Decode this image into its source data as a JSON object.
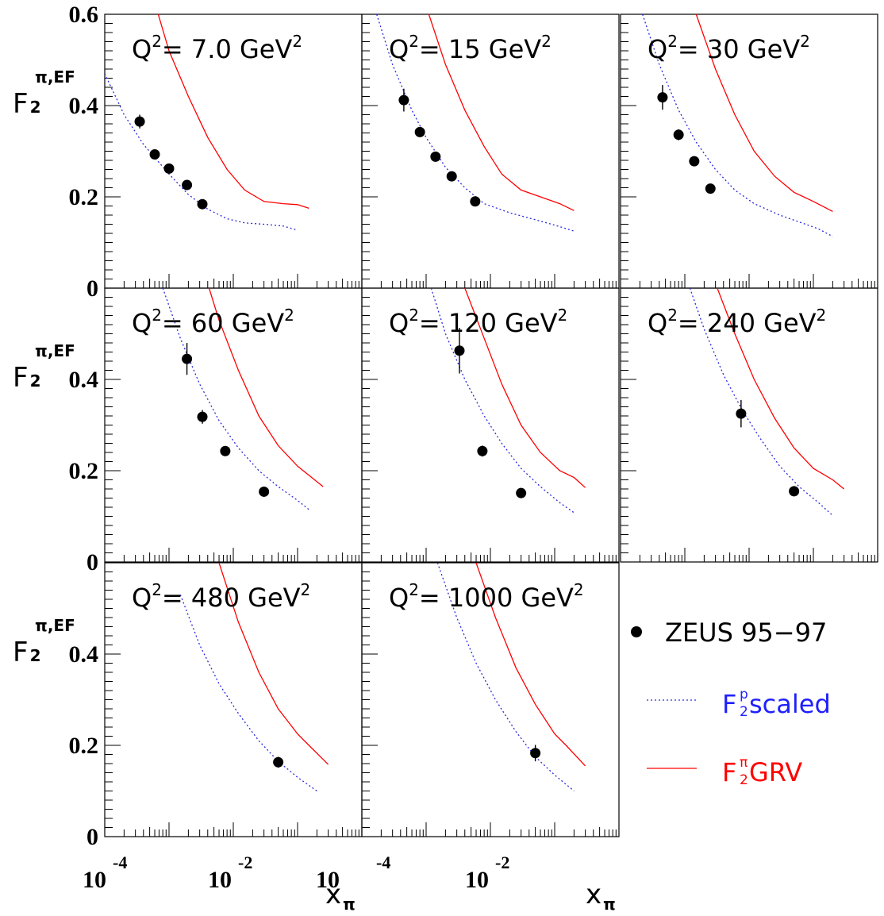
{
  "chart_data": {
    "type": "scatter",
    "x_scale": "log",
    "xlim": [
      0.0001,
      1
    ],
    "ylim": [
      0,
      0.6
    ],
    "x_tick_labels": [
      {
        "base": "10",
        "exp": "-4"
      },
      {
        "base": "10",
        "exp": "-2"
      },
      {
        "base": "10",
        "exp": ""
      }
    ],
    "x_tick_labels_col2": [
      {
        "base": "",
        "exp": "-4"
      },
      {
        "base": "10",
        "exp": "-2"
      }
    ],
    "y_tick_labels_top": [
      "0.6",
      "0.4",
      "0.2",
      "0"
    ],
    "y_tick_labels": [
      "0.4",
      "0.2",
      "0"
    ],
    "ylabel": {
      "main": "F",
      "sub": "2",
      "sup": "π,EF"
    },
    "xlabel": {
      "main": "x",
      "sub": "π"
    },
    "legend": {
      "placement": "bottom-right",
      "data_label": "ZEUS 95−97",
      "scaled_label": {
        "main": "F",
        "sub": "2",
        "sup": "p",
        "rest": " scaled",
        "color": "#2020ff"
      },
      "grv_label": {
        "main": "F",
        "sub": "2",
        "sup": "π",
        "rest": " GRV",
        "color": "#ff0000"
      }
    },
    "colors": {
      "data": "#000000",
      "scaled": "#2a2adf",
      "grv": "#ff0000"
    },
    "panels": [
      {
        "q2_prefix": "Q",
        "q2_sup": "2",
        "q2_text": "= 7.0 GeV",
        "q2_unit_sup": "2",
        "data": [
          {
            "x": 0.00035,
            "y": 0.365,
            "err": 0.015
          },
          {
            "x": 0.0006,
            "y": 0.293,
            "err": 0.008
          },
          {
            "x": 0.001,
            "y": 0.262,
            "err": 0.008
          },
          {
            "x": 0.0019,
            "y": 0.226,
            "err": 0.007
          },
          {
            "x": 0.0033,
            "y": 0.184,
            "err": 0.007
          }
        ],
        "scaled": [
          [
            0.0001,
            0.47
          ],
          [
            0.0002,
            0.38
          ],
          [
            0.0004,
            0.315
          ],
          [
            0.001,
            0.25
          ],
          [
            0.002,
            0.205
          ],
          [
            0.004,
            0.173
          ],
          [
            0.008,
            0.152
          ],
          [
            0.015,
            0.143
          ],
          [
            0.03,
            0.14
          ],
          [
            0.06,
            0.136
          ],
          [
            0.1,
            0.127
          ]
        ],
        "grv": [
          [
            0.00068,
            0.6
          ],
          [
            0.001,
            0.52
          ],
          [
            0.002,
            0.42
          ],
          [
            0.004,
            0.33
          ],
          [
            0.008,
            0.26
          ],
          [
            0.015,
            0.215
          ],
          [
            0.03,
            0.19
          ],
          [
            0.06,
            0.185
          ],
          [
            0.1,
            0.183
          ],
          [
            0.15,
            0.175
          ]
        ]
      },
      {
        "q2_prefix": "Q",
        "q2_sup": "2",
        "q2_text": "= 15 GeV",
        "q2_unit_sup": "2",
        "data": [
          {
            "x": 0.00045,
            "y": 0.412,
            "err": 0.025
          },
          {
            "x": 0.0008,
            "y": 0.342,
            "err": 0.01
          },
          {
            "x": 0.0014,
            "y": 0.288,
            "err": 0.009
          },
          {
            "x": 0.0025,
            "y": 0.245,
            "err": 0.009
          },
          {
            "x": 0.0058,
            "y": 0.19,
            "err": 0.01
          }
        ],
        "scaled": [
          [
            0.00017,
            0.6
          ],
          [
            0.0003,
            0.49
          ],
          [
            0.0006,
            0.39
          ],
          [
            0.001,
            0.33
          ],
          [
            0.002,
            0.265
          ],
          [
            0.004,
            0.22
          ],
          [
            0.008,
            0.185
          ],
          [
            0.02,
            0.165
          ],
          [
            0.05,
            0.15
          ],
          [
            0.1,
            0.138
          ],
          [
            0.2,
            0.125
          ]
        ],
        "grv": [
          [
            0.0011,
            0.6
          ],
          [
            0.002,
            0.49
          ],
          [
            0.004,
            0.39
          ],
          [
            0.008,
            0.31
          ],
          [
            0.015,
            0.25
          ],
          [
            0.03,
            0.215
          ],
          [
            0.06,
            0.2
          ],
          [
            0.12,
            0.185
          ],
          [
            0.2,
            0.17
          ]
        ]
      },
      {
        "q2_prefix": "Q",
        "q2_sup": "2",
        "q2_text": "= 30 GeV",
        "q2_unit_sup": "2",
        "data": [
          {
            "x": 0.00045,
            "y": 0.418,
            "err": 0.027
          },
          {
            "x": 0.0008,
            "y": 0.336,
            "err": 0.012
          },
          {
            "x": 0.0014,
            "y": 0.278,
            "err": 0.01
          },
          {
            "x": 0.0025,
            "y": 0.218,
            "err": 0.009
          }
        ],
        "scaled": [
          [
            0.00022,
            0.6
          ],
          [
            0.0004,
            0.49
          ],
          [
            0.0008,
            0.39
          ],
          [
            0.0015,
            0.32
          ],
          [
            0.003,
            0.26
          ],
          [
            0.006,
            0.215
          ],
          [
            0.012,
            0.185
          ],
          [
            0.03,
            0.16
          ],
          [
            0.06,
            0.145
          ],
          [
            0.12,
            0.13
          ],
          [
            0.2,
            0.113
          ]
        ],
        "grv": [
          [
            0.0015,
            0.6
          ],
          [
            0.003,
            0.48
          ],
          [
            0.006,
            0.38
          ],
          [
            0.012,
            0.3
          ],
          [
            0.025,
            0.245
          ],
          [
            0.05,
            0.21
          ],
          [
            0.1,
            0.19
          ],
          [
            0.2,
            0.168
          ]
        ]
      },
      {
        "q2_prefix": "Q",
        "q2_sup": "2",
        "q2_text": "= 60 GeV",
        "q2_unit_sup": "2",
        "data": [
          {
            "x": 0.0019,
            "y": 0.445,
            "err": 0.035
          },
          {
            "x": 0.0033,
            "y": 0.318,
            "err": 0.015
          },
          {
            "x": 0.0075,
            "y": 0.243,
            "err": 0.01
          },
          {
            "x": 0.03,
            "y": 0.154,
            "err": 0.008
          }
        ],
        "scaled": [
          [
            0.0008,
            0.6
          ],
          [
            0.0015,
            0.49
          ],
          [
            0.003,
            0.39
          ],
          [
            0.006,
            0.31
          ],
          [
            0.012,
            0.25
          ],
          [
            0.025,
            0.2
          ],
          [
            0.05,
            0.165
          ],
          [
            0.1,
            0.135
          ],
          [
            0.15,
            0.115
          ]
        ],
        "grv": [
          [
            0.0042,
            0.6
          ],
          [
            0.006,
            0.53
          ],
          [
            0.012,
            0.42
          ],
          [
            0.025,
            0.32
          ],
          [
            0.05,
            0.255
          ],
          [
            0.1,
            0.21
          ],
          [
            0.15,
            0.19
          ],
          [
            0.25,
            0.165
          ]
        ]
      },
      {
        "q2_prefix": "Q",
        "q2_sup": "2",
        "q2_text": "= 120 GeV",
        "q2_unit_sup": "2",
        "data": [
          {
            "x": 0.0033,
            "y": 0.463,
            "err": 0.05
          },
          {
            "x": 0.0075,
            "y": 0.243,
            "err": 0.012
          },
          {
            "x": 0.03,
            "y": 0.151,
            "err": 0.008
          }
        ],
        "scaled": [
          [
            0.0012,
            0.6
          ],
          [
            0.002,
            0.5
          ],
          [
            0.004,
            0.4
          ],
          [
            0.008,
            0.32
          ],
          [
            0.015,
            0.26
          ],
          [
            0.03,
            0.205
          ],
          [
            0.06,
            0.165
          ],
          [
            0.12,
            0.13
          ],
          [
            0.2,
            0.108
          ]
        ],
        "grv": [
          [
            0.004,
            0.6
          ],
          [
            0.008,
            0.49
          ],
          [
            0.015,
            0.39
          ],
          [
            0.03,
            0.3
          ],
          [
            0.06,
            0.24
          ],
          [
            0.12,
            0.2
          ],
          [
            0.2,
            0.185
          ],
          [
            0.3,
            0.163
          ]
        ]
      },
      {
        "q2_prefix": "Q",
        "q2_sup": "2",
        "q2_text": "= 240 GeV",
        "q2_unit_sup": "2",
        "data": [
          {
            "x": 0.0075,
            "y": 0.325,
            "err": 0.03
          },
          {
            "x": 0.05,
            "y": 0.155,
            "err": 0.009
          }
        ],
        "scaled": [
          [
            0.0012,
            0.6
          ],
          [
            0.002,
            0.51
          ],
          [
            0.004,
            0.41
          ],
          [
            0.008,
            0.33
          ],
          [
            0.015,
            0.27
          ],
          [
            0.03,
            0.21
          ],
          [
            0.06,
            0.165
          ],
          [
            0.12,
            0.13
          ],
          [
            0.2,
            0.102
          ]
        ],
        "grv": [
          [
            0.0032,
            0.6
          ],
          [
            0.006,
            0.5
          ],
          [
            0.012,
            0.4
          ],
          [
            0.025,
            0.315
          ],
          [
            0.05,
            0.25
          ],
          [
            0.1,
            0.205
          ],
          [
            0.2,
            0.18
          ],
          [
            0.3,
            0.16
          ]
        ]
      },
      {
        "q2_prefix": "Q",
        "q2_sup": "2",
        "q2_text": "= 480 GeV",
        "q2_unit_sup": "2",
        "data": [
          {
            "x": 0.05,
            "y": 0.163,
            "err": 0.012
          }
        ],
        "scaled": [
          [
            0.0015,
            0.53
          ],
          [
            0.003,
            0.42
          ],
          [
            0.006,
            0.335
          ],
          [
            0.012,
            0.27
          ],
          [
            0.025,
            0.21
          ],
          [
            0.05,
            0.165
          ],
          [
            0.1,
            0.13
          ],
          [
            0.2,
            0.1
          ]
        ],
        "grv": [
          [
            0.006,
            0.6
          ],
          [
            0.012,
            0.47
          ],
          [
            0.025,
            0.36
          ],
          [
            0.05,
            0.28
          ],
          [
            0.1,
            0.225
          ],
          [
            0.15,
            0.2
          ],
          [
            0.3,
            0.158
          ]
        ]
      },
      {
        "q2_prefix": "Q",
        "q2_sup": "2",
        "q2_text": "= 1000 GeV",
        "q2_unit_sup": "2",
        "data": [
          {
            "x": 0.05,
            "y": 0.183,
            "err": 0.018
          }
        ],
        "scaled": [
          [
            0.0015,
            0.6
          ],
          [
            0.003,
            0.48
          ],
          [
            0.006,
            0.38
          ],
          [
            0.012,
            0.3
          ],
          [
            0.025,
            0.23
          ],
          [
            0.05,
            0.175
          ],
          [
            0.1,
            0.135
          ],
          [
            0.2,
            0.1
          ]
        ],
        "grv": [
          [
            0.006,
            0.6
          ],
          [
            0.012,
            0.48
          ],
          [
            0.025,
            0.37
          ],
          [
            0.05,
            0.29
          ],
          [
            0.1,
            0.225
          ],
          [
            0.15,
            0.2
          ],
          [
            0.3,
            0.155
          ]
        ]
      }
    ]
  }
}
